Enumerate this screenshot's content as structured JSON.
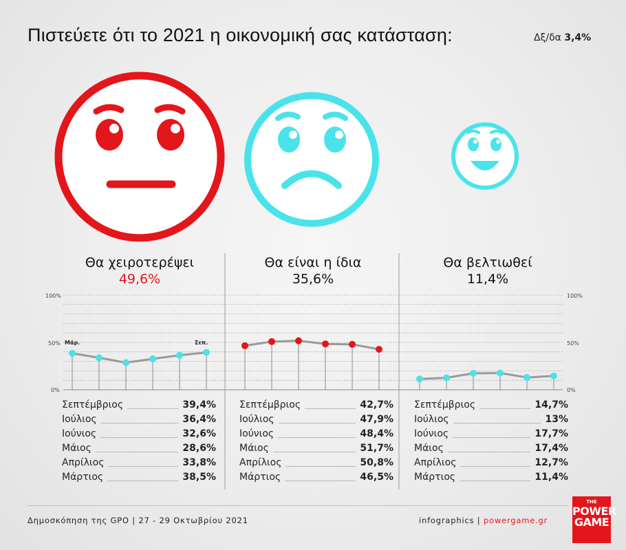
{
  "title": "Πιστεύετε ότι το 2021 η οικονομική σας κατάσταση:",
  "dkna_label": "Δξ/δα",
  "dkna_value": "3,4%",
  "colors": {
    "red": "#e3161b",
    "cyan": "#4ae3ea",
    "dark": "#111111"
  },
  "icons": [
    "neutral-face-icon",
    "sad-face-icon",
    "happy-face-icon"
  ],
  "chart_data": {
    "type": "line",
    "y_ticks": [
      "100%",
      "50%",
      "0%"
    ],
    "ylim": [
      0,
      100
    ],
    "grid": true,
    "x": [
      "Μάρ.",
      "Απρ.",
      "Μάι.",
      "Ιούν.",
      "Ιούλ.",
      "Σεπ."
    ],
    "x_labels_shown": {
      "first": "Μάρ.",
      "last": "Σεπ."
    },
    "series": [
      {
        "name": "Θα χειροτερέψει",
        "total": "49,6%",
        "color": "#4ae3ea",
        "values": [
          38.5,
          33.8,
          28.6,
          32.6,
          36.4,
          39.4
        ]
      },
      {
        "name": "Θα είναι η ίδια",
        "total": "35,6%",
        "color": "#e3161b",
        "values": [
          46.5,
          50.8,
          51.7,
          48.4,
          47.9,
          42.7
        ]
      },
      {
        "name": "Θα βελτιωθεί",
        "total": "11,4%",
        "color": "#4ae3ea",
        "values": [
          11.4,
          12.7,
          17.4,
          17.7,
          13,
          14.7
        ]
      }
    ]
  },
  "categories": [
    {
      "label": "Θα χειροτερέψει",
      "pct": "49,6%",
      "pct_color": "#e3161b"
    },
    {
      "label": "Θα είναι η ίδια",
      "pct": "35,6%",
      "pct_color": "#111111"
    },
    {
      "label": "Θα βελτιωθεί",
      "pct": "11,4%",
      "pct_color": "#111111"
    }
  ],
  "tables": [
    {
      "rows": [
        {
          "month": "Σεπτέμβριος",
          "value": "39,4%"
        },
        {
          "month": "Ιούλιος",
          "value": "36,4%"
        },
        {
          "month": "Ιούνιος",
          "value": "32,6%"
        },
        {
          "month": "Μάιος",
          "value": "28,6%"
        },
        {
          "month": "Απρίλιος",
          "value": "33,8%"
        },
        {
          "month": "Μάρτιος",
          "value": "38,5%"
        }
      ]
    },
    {
      "rows": [
        {
          "month": "Σεπτέμβριος",
          "value": "42,7%"
        },
        {
          "month": "Ιούλιος",
          "value": "47,9%"
        },
        {
          "month": "Ιούνιος",
          "value": "48,4%"
        },
        {
          "month": "Μάιος",
          "value": "51,7%"
        },
        {
          "month": "Απρίλιος",
          "value": "50,8%"
        },
        {
          "month": "Μάρτιος",
          "value": "46,5%"
        }
      ]
    },
    {
      "rows": [
        {
          "month": "Σεπτέμβριος",
          "value": "14,7%"
        },
        {
          "month": "Ιούλιος",
          "value": "13%"
        },
        {
          "month": "Ιούνιος",
          "value": "17,7%"
        },
        {
          "month": "Μάιος",
          "value": "17,4%"
        },
        {
          "month": "Απρίλιος",
          "value": "12,7%"
        },
        {
          "month": "Μάρτιος",
          "value": "11,4%"
        }
      ]
    }
  ],
  "footer": {
    "source": "Δημοσκόπηση της GPO | 27 - 29 Οκτωβρίου 2021",
    "credit_prefix": "infographics | ",
    "credit_site": "powergame.gr"
  },
  "logo": {
    "the": "THE",
    "line1": "POWER",
    "line2": "GAME"
  }
}
